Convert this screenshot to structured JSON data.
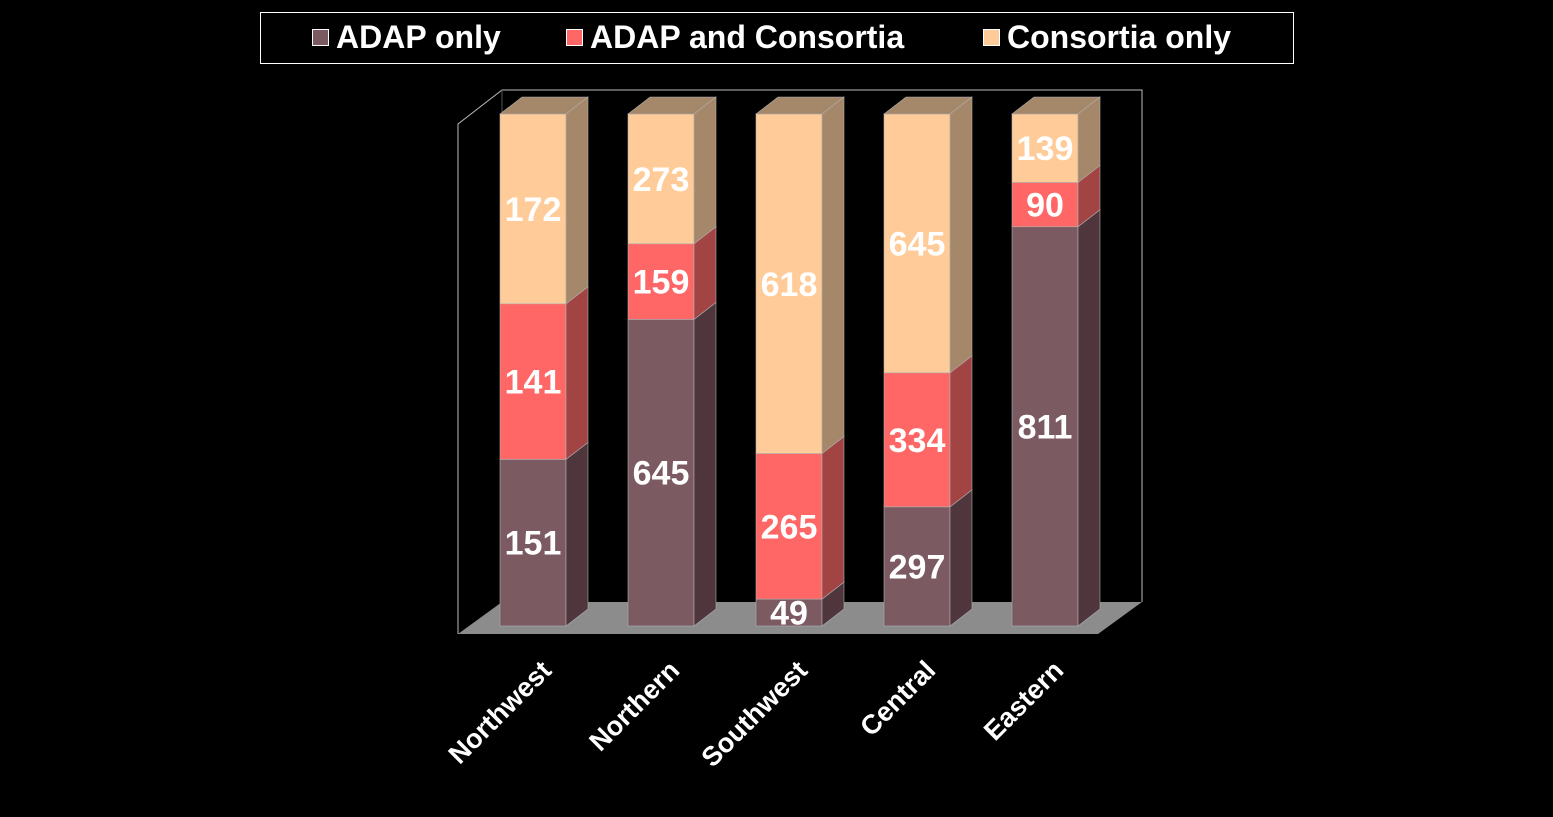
{
  "chart_data": {
    "type": "bar",
    "stacked": true,
    "three_d": true,
    "normalized_percent": true,
    "categories": [
      "Northwest",
      "Northern",
      "Southwest",
      "Central",
      "Eastern"
    ],
    "series": [
      {
        "name": "ADAP only",
        "values": [
          151,
          645,
          49,
          297,
          811
        ],
        "color": "#7C5A62",
        "side_color": "#4F363C"
      },
      {
        "name": "ADAP and Consortia",
        "values": [
          141,
          159,
          265,
          334,
          90
        ],
        "color": "#FF6666",
        "side_color": "#A34444"
      },
      {
        "name": "Consortia only",
        "values": [
          172,
          273,
          618,
          645,
          139
        ],
        "color": "#FFCC99",
        "side_color": "#A5876A"
      }
    ],
    "legend_position": "top",
    "grid": false,
    "background": "#000000",
    "label_color": "#FFFFFF",
    "floor_color": "#8C8C8C"
  }
}
